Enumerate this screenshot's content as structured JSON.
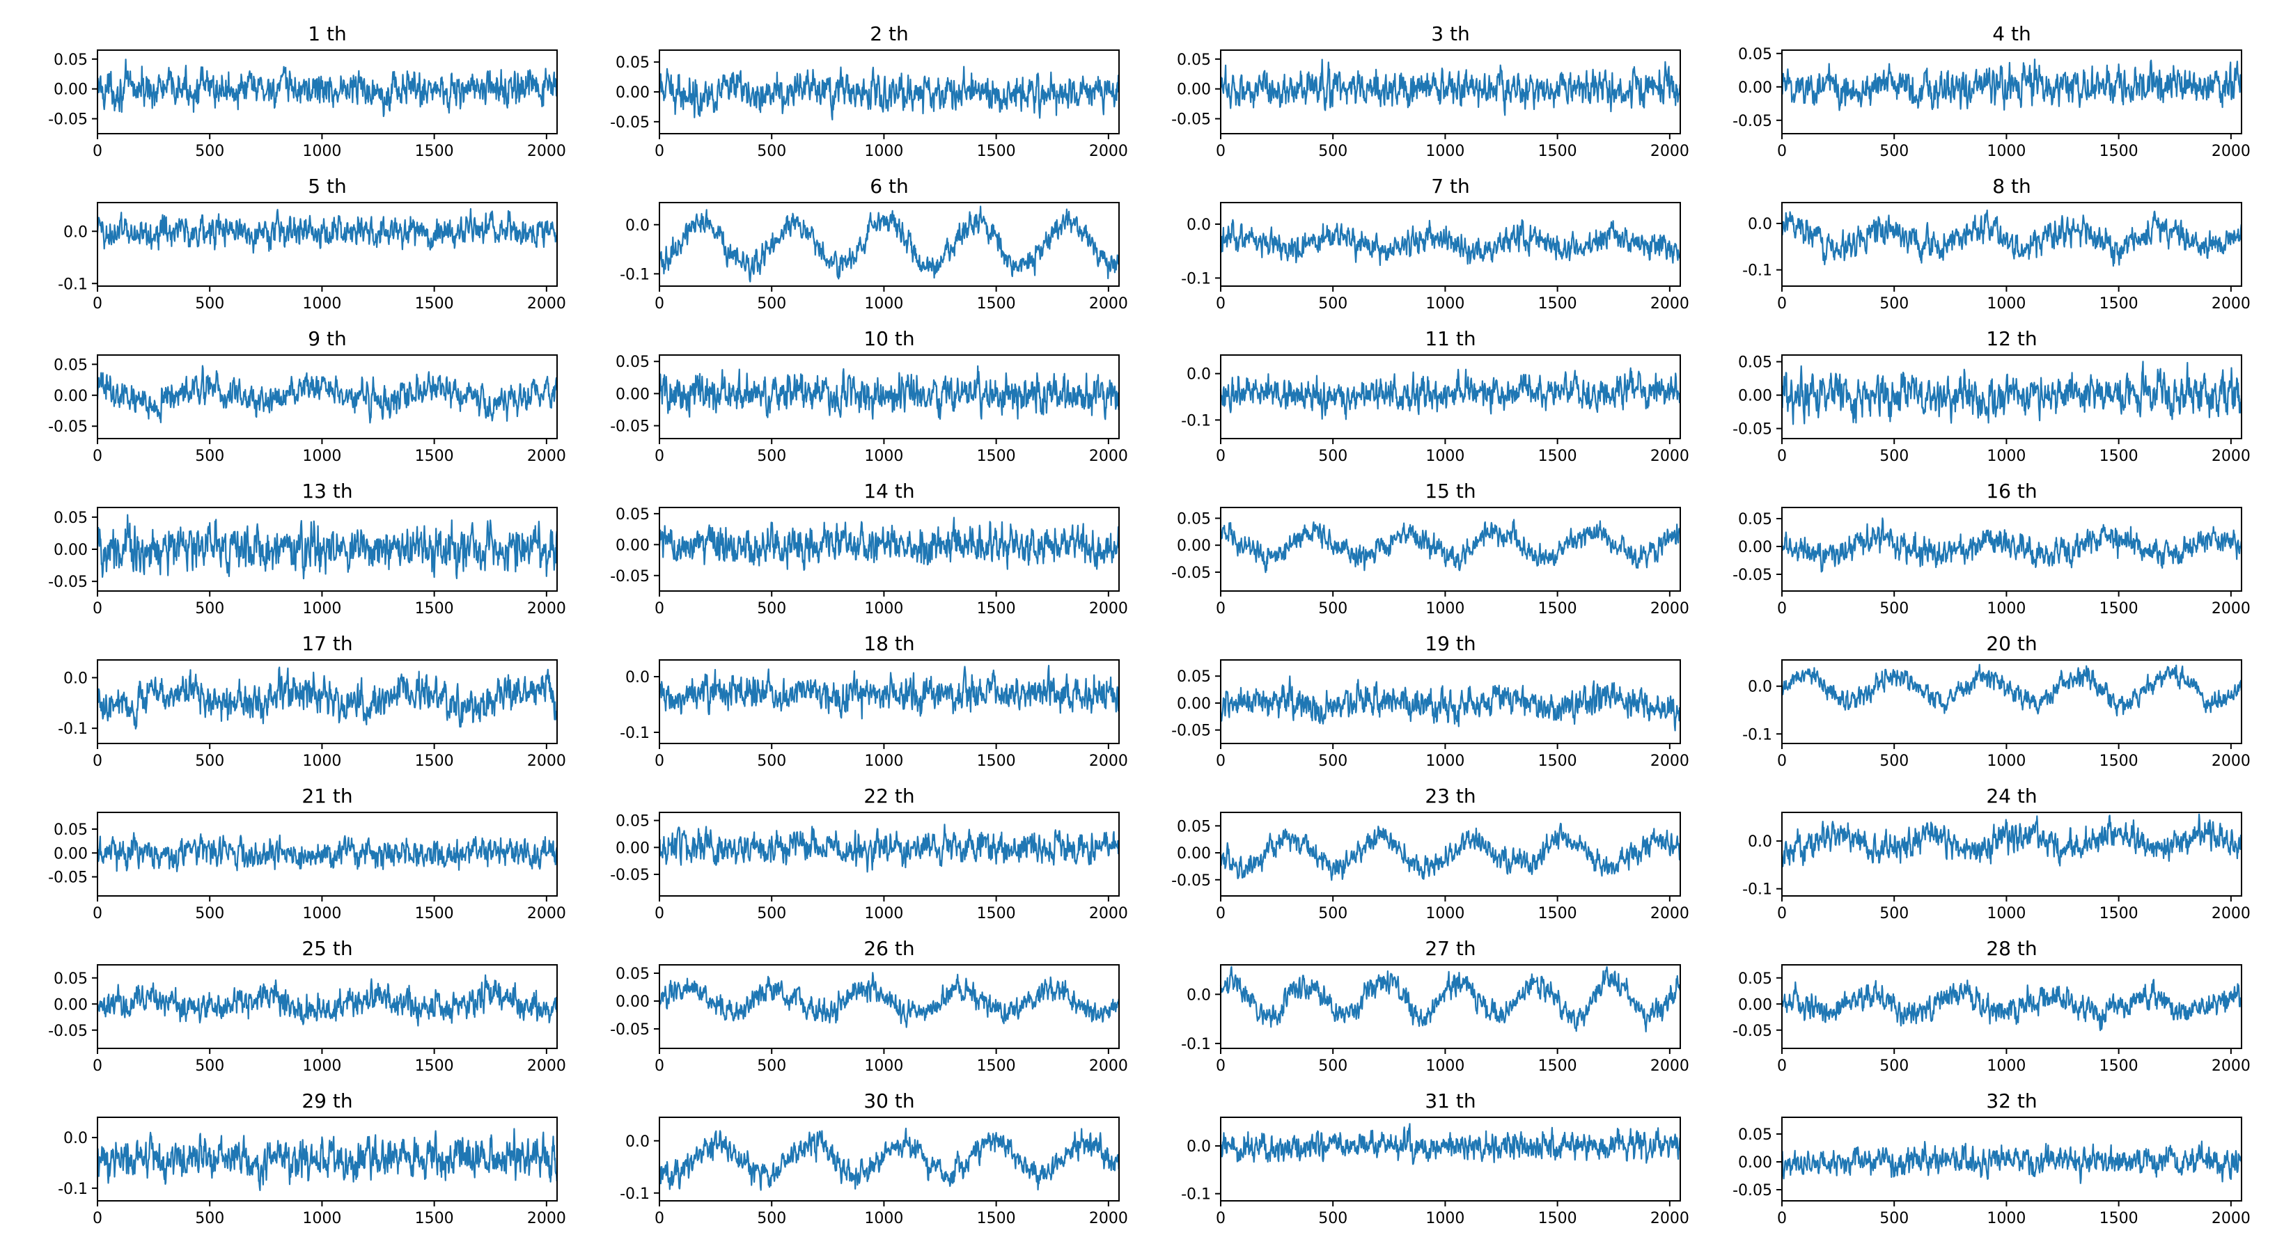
{
  "figure": {
    "line_color": "#1f77b4",
    "grid": false,
    "legend": "none"
  },
  "chart_data": [
    {
      "type": "line",
      "title": "1 th",
      "series_length": 2048,
      "xlim": [
        0,
        2047
      ],
      "ylim": [
        -0.075,
        0.065
      ],
      "xticks": [
        0,
        500,
        1000,
        1500,
        2000
      ],
      "yticks": [
        {
          "v": 0.05,
          "label": "0.05"
        },
        {
          "v": 0.0,
          "label": "0.00"
        },
        {
          "v": -0.05,
          "label": "-0.05"
        }
      ],
      "signal": {
        "center": 0.0,
        "noise_amplitude": 0.03,
        "cycles": 0,
        "cycle_amplitude": 0.0
      }
    },
    {
      "type": "line",
      "title": "2 th",
      "series_length": 2048,
      "xlim": [
        0,
        2047
      ],
      "ylim": [
        -0.07,
        0.07
      ],
      "xticks": [
        0,
        500,
        1000,
        1500,
        2000
      ],
      "yticks": [
        {
          "v": 0.05,
          "label": "0.05"
        },
        {
          "v": 0.0,
          "label": "0.00"
        },
        {
          "v": -0.05,
          "label": "-0.05"
        }
      ],
      "signal": {
        "center": 0.0,
        "noise_amplitude": 0.03,
        "cycles": 0,
        "cycle_amplitude": 0.0
      }
    },
    {
      "type": "line",
      "title": "3 th",
      "series_length": 2048,
      "xlim": [
        0,
        2047
      ],
      "ylim": [
        -0.075,
        0.065
      ],
      "xticks": [
        0,
        500,
        1000,
        1500,
        2000
      ],
      "yticks": [
        {
          "v": 0.05,
          "label": "0.05"
        },
        {
          "v": 0.0,
          "label": "0.00"
        },
        {
          "v": -0.05,
          "label": "-0.05"
        }
      ],
      "signal": {
        "center": 0.0,
        "noise_amplitude": 0.03,
        "cycles": 0,
        "cycle_amplitude": 0.0
      }
    },
    {
      "type": "line",
      "title": "4 th",
      "series_length": 2048,
      "xlim": [
        0,
        2047
      ],
      "ylim": [
        -0.07,
        0.055
      ],
      "xticks": [
        0,
        500,
        1000,
        1500,
        2000
      ],
      "yticks": [
        {
          "v": 0.05,
          "label": "0.05"
        },
        {
          "v": 0.0,
          "label": "0.00"
        },
        {
          "v": -0.05,
          "label": "-0.05"
        }
      ],
      "signal": {
        "center": 0.0,
        "noise_amplitude": 0.028,
        "cycles": 0,
        "cycle_amplitude": 0.0
      }
    },
    {
      "type": "line",
      "title": "5 th",
      "series_length": 2048,
      "xlim": [
        0,
        2047
      ],
      "ylim": [
        -0.105,
        0.055
      ],
      "xticks": [
        0,
        500,
        1000,
        1500,
        2000
      ],
      "yticks": [
        {
          "v": 0.0,
          "label": "0.0"
        },
        {
          "v": -0.1,
          "label": "-0.1"
        }
      ],
      "signal": {
        "center": 0.0,
        "noise_amplitude": 0.03,
        "cycles": 0,
        "cycle_amplitude": 0.0
      }
    },
    {
      "type": "line",
      "title": "6 th",
      "series_length": 2048,
      "xlim": [
        0,
        2047
      ],
      "ylim": [
        -0.125,
        0.045
      ],
      "xticks": [
        0,
        500,
        1000,
        1500,
        2000
      ],
      "yticks": [
        {
          "v": 0.0,
          "label": "0.0"
        },
        {
          "v": -0.1,
          "label": "-0.1"
        }
      ],
      "signal": {
        "center": -0.04,
        "noise_amplitude": 0.025,
        "cycles": 5,
        "cycle_amplitude": 0.045
      }
    },
    {
      "type": "line",
      "title": "7 th",
      "series_length": 2048,
      "xlim": [
        0,
        2047
      ],
      "ylim": [
        -0.115,
        0.04
      ],
      "xticks": [
        0,
        500,
        1000,
        1500,
        2000
      ],
      "yticks": [
        {
          "v": 0.0,
          "label": "0.0"
        },
        {
          "v": -0.1,
          "label": "-0.1"
        }
      ],
      "signal": {
        "center": -0.035,
        "noise_amplitude": 0.025,
        "cycles": 5,
        "cycle_amplitude": 0.015
      }
    },
    {
      "type": "line",
      "title": "8 th",
      "series_length": 2048,
      "xlim": [
        0,
        2047
      ],
      "ylim": [
        -0.135,
        0.045
      ],
      "xticks": [
        0,
        500,
        1000,
        1500,
        2000
      ],
      "yticks": [
        {
          "v": 0.0,
          "label": "0.0"
        },
        {
          "v": -0.1,
          "label": "-0.1"
        }
      ],
      "signal": {
        "center": -0.03,
        "noise_amplitude": 0.03,
        "cycles": 5,
        "cycle_amplitude": 0.02
      }
    },
    {
      "type": "line",
      "title": "9 th",
      "series_length": 2048,
      "xlim": [
        0,
        2047
      ],
      "ylim": [
        -0.07,
        0.065
      ],
      "xticks": [
        0,
        500,
        1000,
        1500,
        2000
      ],
      "yticks": [
        {
          "v": 0.05,
          "label": "0.05"
        },
        {
          "v": 0.0,
          "label": "0.00"
        },
        {
          "v": -0.05,
          "label": "-0.05"
        }
      ],
      "signal": {
        "center": 0.0,
        "noise_amplitude": 0.025,
        "cycles": 4,
        "cycle_amplitude": 0.012
      }
    },
    {
      "type": "line",
      "title": "10 th",
      "series_length": 2048,
      "xlim": [
        0,
        2047
      ],
      "ylim": [
        -0.07,
        0.06
      ],
      "xticks": [
        0,
        500,
        1000,
        1500,
        2000
      ],
      "yticks": [
        {
          "v": 0.05,
          "label": "0.05"
        },
        {
          "v": 0.0,
          "label": "0.00"
        },
        {
          "v": -0.05,
          "label": "-0.05"
        }
      ],
      "signal": {
        "center": 0.0,
        "noise_amplitude": 0.03,
        "cycles": 0,
        "cycle_amplitude": 0.0
      }
    },
    {
      "type": "line",
      "title": "11 th",
      "series_length": 2048,
      "xlim": [
        0,
        2047
      ],
      "ylim": [
        -0.14,
        0.04
      ],
      "xticks": [
        0,
        500,
        1000,
        1500,
        2000
      ],
      "yticks": [
        {
          "v": 0.0,
          "label": "0.0"
        },
        {
          "v": -0.1,
          "label": "-0.1"
        }
      ],
      "signal": {
        "center": -0.04,
        "noise_amplitude": 0.035,
        "cycles": 0,
        "cycle_amplitude": 0.0
      }
    },
    {
      "type": "line",
      "title": "12 th",
      "series_length": 2048,
      "xlim": [
        0,
        2047
      ],
      "ylim": [
        -0.065,
        0.06
      ],
      "xticks": [
        0,
        500,
        1000,
        1500,
        2000
      ],
      "yticks": [
        {
          "v": 0.05,
          "label": "0.05"
        },
        {
          "v": 0.0,
          "label": "0.00"
        },
        {
          "v": -0.05,
          "label": "-0.05"
        }
      ],
      "signal": {
        "center": 0.0,
        "noise_amplitude": 0.03,
        "cycles": 0,
        "cycle_amplitude": 0.0
      }
    },
    {
      "type": "line",
      "title": "13 th",
      "series_length": 2048,
      "xlim": [
        0,
        2047
      ],
      "ylim": [
        -0.065,
        0.065
      ],
      "xticks": [
        0,
        500,
        1000,
        1500,
        2000
      ],
      "yticks": [
        {
          "v": 0.05,
          "label": "0.05"
        },
        {
          "v": 0.0,
          "label": "0.00"
        },
        {
          "v": -0.05,
          "label": "-0.05"
        }
      ],
      "signal": {
        "center": 0.0,
        "noise_amplitude": 0.035,
        "cycles": 0,
        "cycle_amplitude": 0.0
      }
    },
    {
      "type": "line",
      "title": "14 th",
      "series_length": 2048,
      "xlim": [
        0,
        2047
      ],
      "ylim": [
        -0.075,
        0.06
      ],
      "xticks": [
        0,
        500,
        1000,
        1500,
        2000
      ],
      "yticks": [
        {
          "v": 0.05,
          "label": "0.05"
        },
        {
          "v": 0.0,
          "label": "0.00"
        },
        {
          "v": -0.05,
          "label": "-0.05"
        }
      ],
      "signal": {
        "center": 0.0,
        "noise_amplitude": 0.03,
        "cycles": 0,
        "cycle_amplitude": 0.0
      }
    },
    {
      "type": "line",
      "title": "15 th",
      "series_length": 2048,
      "xlim": [
        0,
        2047
      ],
      "ylim": [
        -0.085,
        0.07
      ],
      "xticks": [
        0,
        500,
        1000,
        1500,
        2000
      ],
      "yticks": [
        {
          "v": 0.05,
          "label": "0.05"
        },
        {
          "v": 0.0,
          "label": "0.00"
        },
        {
          "v": -0.05,
          "label": "-0.05"
        }
      ],
      "signal": {
        "center": 0.0,
        "noise_amplitude": 0.022,
        "cycles": 5,
        "cycle_amplitude": 0.022
      }
    },
    {
      "type": "line",
      "title": "16 th",
      "series_length": 2048,
      "xlim": [
        0,
        2047
      ],
      "ylim": [
        -0.08,
        0.07
      ],
      "xticks": [
        0,
        500,
        1000,
        1500,
        2000
      ],
      "yticks": [
        {
          "v": 0.05,
          "label": "0.05"
        },
        {
          "v": 0.0,
          "label": "0.00"
        },
        {
          "v": -0.05,
          "label": "-0.05"
        }
      ],
      "signal": {
        "center": 0.0,
        "noise_amplitude": 0.025,
        "cycles": 4,
        "cycle_amplitude": 0.015
      }
    },
    {
      "type": "line",
      "title": "17 th",
      "series_length": 2048,
      "xlim": [
        0,
        2047
      ],
      "ylim": [
        -0.13,
        0.035
      ],
      "xticks": [
        0,
        500,
        1000,
        1500,
        2000
      ],
      "yticks": [
        {
          "v": 0.0,
          "label": "0.0"
        },
        {
          "v": -0.1,
          "label": "-0.1"
        }
      ],
      "signal": {
        "center": -0.04,
        "noise_amplitude": 0.035,
        "cycles": 4,
        "cycle_amplitude": 0.015
      }
    },
    {
      "type": "line",
      "title": "18 th",
      "series_length": 2048,
      "xlim": [
        0,
        2047
      ],
      "ylim": [
        -0.12,
        0.03
      ],
      "xticks": [
        0,
        500,
        1000,
        1500,
        2000
      ],
      "yticks": [
        {
          "v": 0.0,
          "label": "0.0"
        },
        {
          "v": -0.1,
          "label": "-0.1"
        }
      ],
      "signal": {
        "center": -0.03,
        "noise_amplitude": 0.03,
        "cycles": 0,
        "cycle_amplitude": 0.0
      }
    },
    {
      "type": "line",
      "title": "19 th",
      "series_length": 2048,
      "xlim": [
        0,
        2047
      ],
      "ylim": [
        -0.075,
        0.08
      ],
      "xticks": [
        0,
        500,
        1000,
        1500,
        2000
      ],
      "yticks": [
        {
          "v": 0.05,
          "label": "0.05"
        },
        {
          "v": 0.0,
          "label": "0.00"
        },
        {
          "v": -0.05,
          "label": "-0.05"
        }
      ],
      "signal": {
        "center": 0.0,
        "noise_amplitude": 0.028,
        "cycles": 4,
        "cycle_amplitude": 0.01
      }
    },
    {
      "type": "line",
      "title": "20 th",
      "series_length": 2048,
      "xlim": [
        0,
        2047
      ],
      "ylim": [
        -0.12,
        0.055
      ],
      "xticks": [
        0,
        500,
        1000,
        1500,
        2000
      ],
      "yticks": [
        {
          "v": 0.0,
          "label": "0.0"
        },
        {
          "v": -0.1,
          "label": "-0.1"
        }
      ],
      "signal": {
        "center": -0.005,
        "noise_amplitude": 0.022,
        "cycles": 5,
        "cycle_amplitude": 0.03
      }
    },
    {
      "type": "line",
      "title": "21 th",
      "series_length": 2048,
      "xlim": [
        0,
        2047
      ],
      "ylim": [
        -0.09,
        0.085
      ],
      "xticks": [
        0,
        500,
        1000,
        1500,
        2000
      ],
      "yticks": [
        {
          "v": 0.05,
          "label": "0.05"
        },
        {
          "v": 0.0,
          "label": "0.00"
        },
        {
          "v": -0.05,
          "label": "-0.05"
        }
      ],
      "signal": {
        "center": 0.0,
        "noise_amplitude": 0.03,
        "cycles": 0,
        "cycle_amplitude": 0.0
      }
    },
    {
      "type": "line",
      "title": "22 th",
      "series_length": 2048,
      "xlim": [
        0,
        2047
      ],
      "ylim": [
        -0.09,
        0.065
      ],
      "xticks": [
        0,
        500,
        1000,
        1500,
        2000
      ],
      "yticks": [
        {
          "v": 0.05,
          "label": "0.05"
        },
        {
          "v": 0.0,
          "label": "0.00"
        },
        {
          "v": -0.05,
          "label": "-0.05"
        }
      ],
      "signal": {
        "center": 0.0,
        "noise_amplitude": 0.03,
        "cycles": 0,
        "cycle_amplitude": 0.0
      }
    },
    {
      "type": "line",
      "title": "23 th",
      "series_length": 2048,
      "xlim": [
        0,
        2047
      ],
      "ylim": [
        -0.08,
        0.075
      ],
      "xticks": [
        0,
        500,
        1000,
        1500,
        2000
      ],
      "yticks": [
        {
          "v": 0.05,
          "label": "0.05"
        },
        {
          "v": 0.0,
          "label": "0.00"
        },
        {
          "v": -0.05,
          "label": "-0.05"
        }
      ],
      "signal": {
        "center": 0.0,
        "noise_amplitude": 0.022,
        "cycles": 5,
        "cycle_amplitude": 0.025
      }
    },
    {
      "type": "line",
      "title": "24 th",
      "series_length": 2048,
      "xlim": [
        0,
        2047
      ],
      "ylim": [
        -0.115,
        0.06
      ],
      "xticks": [
        0,
        500,
        1000,
        1500,
        2000
      ],
      "yticks": [
        {
          "v": 0.0,
          "label": "0.0"
        },
        {
          "v": -0.1,
          "label": "-0.1"
        }
      ],
      "signal": {
        "center": 0.0,
        "noise_amplitude": 0.03,
        "cycles": 5,
        "cycle_amplitude": 0.015
      }
    },
    {
      "type": "line",
      "title": "25 th",
      "series_length": 2048,
      "xlim": [
        0,
        2047
      ],
      "ylim": [
        -0.085,
        0.075
      ],
      "xticks": [
        0,
        500,
        1000,
        1500,
        2000
      ],
      "yticks": [
        {
          "v": 0.05,
          "label": "0.05"
        },
        {
          "v": 0.0,
          "label": "0.00"
        },
        {
          "v": -0.05,
          "label": "-0.05"
        }
      ],
      "signal": {
        "center": 0.0,
        "noise_amplitude": 0.028,
        "cycles": 4,
        "cycle_amplitude": 0.012
      }
    },
    {
      "type": "line",
      "title": "26 th",
      "series_length": 2048,
      "xlim": [
        0,
        2047
      ],
      "ylim": [
        -0.085,
        0.065
      ],
      "xticks": [
        0,
        500,
        1000,
        1500,
        2000
      ],
      "yticks": [
        {
          "v": 0.05,
          "label": "0.05"
        },
        {
          "v": 0.0,
          "label": "0.00"
        },
        {
          "v": -0.05,
          "label": "-0.05"
        }
      ],
      "signal": {
        "center": 0.0,
        "noise_amplitude": 0.022,
        "cycles": 5,
        "cycle_amplitude": 0.022
      }
    },
    {
      "type": "line",
      "title": "27 th",
      "series_length": 2048,
      "xlim": [
        0,
        2047
      ],
      "ylim": [
        -0.11,
        0.06
      ],
      "xticks": [
        0,
        500,
        1000,
        1500,
        2000
      ],
      "yticks": [
        {
          "v": 0.0,
          "label": "0.0"
        },
        {
          "v": -0.1,
          "label": "-0.1"
        }
      ],
      "signal": {
        "center": -0.01,
        "noise_amplitude": 0.025,
        "cycles": 6,
        "cycle_amplitude": 0.035
      }
    },
    {
      "type": "line",
      "title": "28 th",
      "series_length": 2048,
      "xlim": [
        0,
        2047
      ],
      "ylim": [
        -0.085,
        0.075
      ],
      "xticks": [
        0,
        500,
        1000,
        1500,
        2000
      ],
      "yticks": [
        {
          "v": 0.05,
          "label": "0.05"
        },
        {
          "v": 0.0,
          "label": "0.00"
        },
        {
          "v": -0.05,
          "label": "-0.05"
        }
      ],
      "signal": {
        "center": 0.0,
        "noise_amplitude": 0.025,
        "cycles": 5,
        "cycle_amplitude": 0.015
      }
    },
    {
      "type": "line",
      "title": "29 th",
      "series_length": 2048,
      "xlim": [
        0,
        2047
      ],
      "ylim": [
        -0.125,
        0.04
      ],
      "xticks": [
        0,
        500,
        1000,
        1500,
        2000
      ],
      "yticks": [
        {
          "v": 0.0,
          "label": "0.0"
        },
        {
          "v": -0.1,
          "label": "-0.1"
        }
      ],
      "signal": {
        "center": -0.04,
        "noise_amplitude": 0.04,
        "cycles": 0,
        "cycle_amplitude": 0.0
      }
    },
    {
      "type": "line",
      "title": "30 th",
      "series_length": 2048,
      "xlim": [
        0,
        2047
      ],
      "ylim": [
        -0.115,
        0.045
      ],
      "xticks": [
        0,
        500,
        1000,
        1500,
        2000
      ],
      "yticks": [
        {
          "v": 0.0,
          "label": "0.0"
        },
        {
          "v": -0.1,
          "label": "-0.1"
        }
      ],
      "signal": {
        "center": -0.035,
        "noise_amplitude": 0.025,
        "cycles": 5,
        "cycle_amplitude": 0.03
      }
    },
    {
      "type": "line",
      "title": "31 th",
      "series_length": 2048,
      "xlim": [
        0,
        2047
      ],
      "ylim": [
        -0.115,
        0.06
      ],
      "xticks": [
        0,
        500,
        1000,
        1500,
        2000
      ],
      "yticks": [
        {
          "v": 0.0,
          "label": "0.0"
        },
        {
          "v": -0.1,
          "label": "-0.1"
        }
      ],
      "signal": {
        "center": 0.0,
        "noise_amplitude": 0.03,
        "cycles": 0,
        "cycle_amplitude": 0.0
      }
    },
    {
      "type": "line",
      "title": "32 th",
      "series_length": 2048,
      "xlim": [
        0,
        2047
      ],
      "ylim": [
        -0.07,
        0.08
      ],
      "xticks": [
        0,
        500,
        1000,
        1500,
        2000
      ],
      "yticks": [
        {
          "v": 0.05,
          "label": "0.05"
        },
        {
          "v": 0.0,
          "label": "0.00"
        },
        {
          "v": -0.05,
          "label": "-0.05"
        }
      ],
      "signal": {
        "center": 0.0,
        "noise_amplitude": 0.025,
        "cycles": 0,
        "cycle_amplitude": 0.0
      }
    }
  ]
}
